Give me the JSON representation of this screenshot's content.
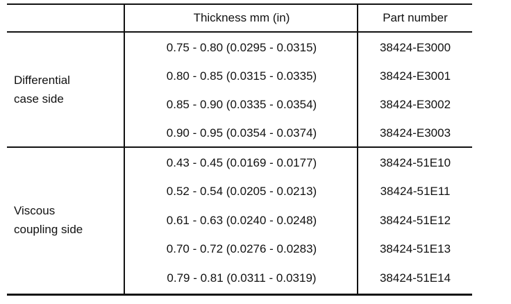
{
  "table": {
    "headers": {
      "thickness": "Thickness mm (in)",
      "part_number": "Part number"
    },
    "groups": [
      {
        "label_lines": [
          "Differential",
          "case side"
        ],
        "rows": [
          {
            "thickness": "0.75 - 0.80 (0.0295 - 0.0315)",
            "part_number": "38424-E3000"
          },
          {
            "thickness": "0.80 - 0.85 (0.0315 - 0.0335)",
            "part_number": "38424-E3001"
          },
          {
            "thickness": "0.85 - 0.90 (0.0335 - 0.0354)",
            "part_number": "38424-E3002"
          },
          {
            "thickness": "0.90 - 0.95 (0.0354 - 0.0374)",
            "part_number": "38424-E3003"
          }
        ]
      },
      {
        "label_lines": [
          "Viscous",
          "coupling side"
        ],
        "rows": [
          {
            "thickness": "0.43 - 0.45 (0.0169 - 0.0177)",
            "part_number": "38424-51E10"
          },
          {
            "thickness": "0.52 - 0.54 (0.0205 - 0.0213)",
            "part_number": "38424-51E11"
          },
          {
            "thickness": "0.61 - 0.63 (0.0240 - 0.0248)",
            "part_number": "38424-51E12"
          },
          {
            "thickness": "0.70 - 0.72 (0.0276 - 0.0283)",
            "part_number": "38424-51E13"
          },
          {
            "thickness": "0.79 - 0.81 (0.0311 - 0.0319)",
            "part_number": "38424-51E14"
          }
        ]
      }
    ]
  }
}
